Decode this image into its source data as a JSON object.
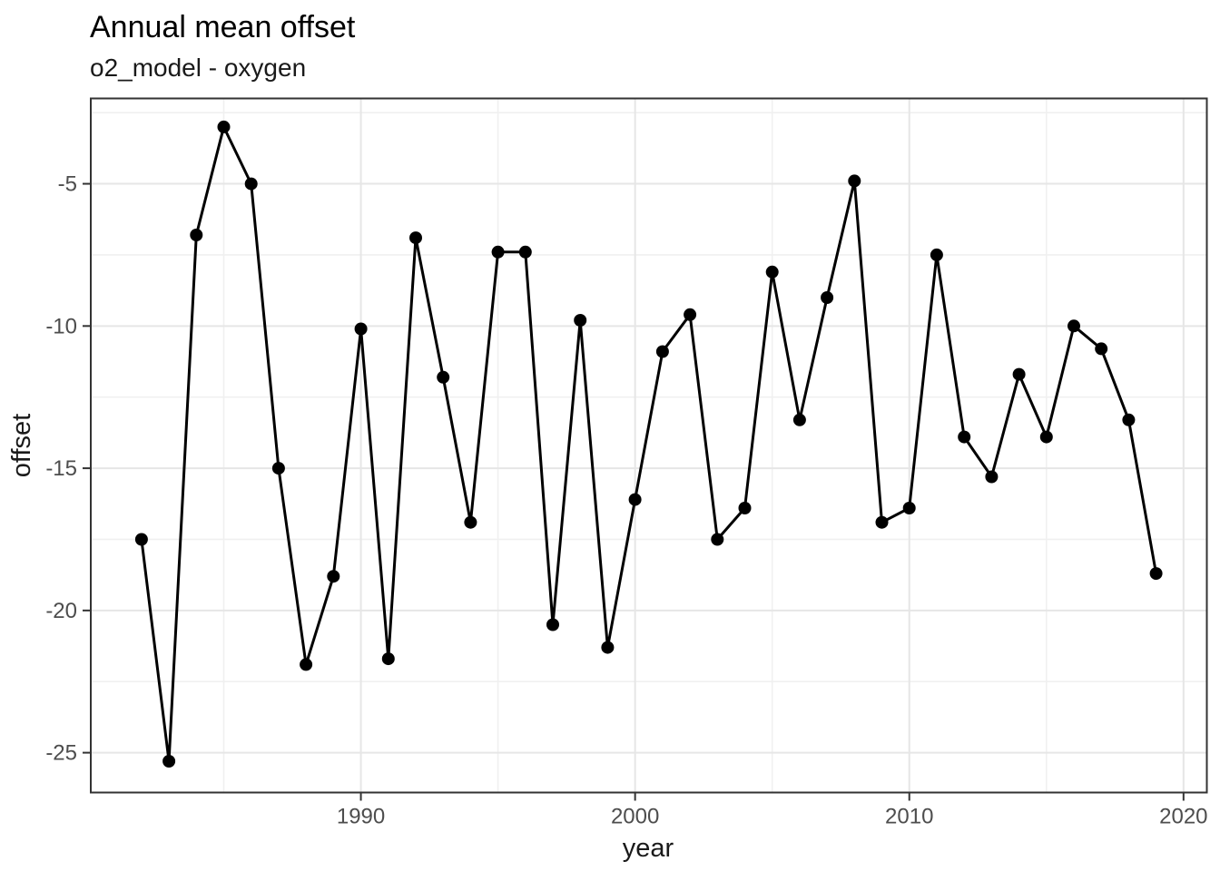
{
  "chart_data": {
    "type": "line",
    "title": "Annual mean offset",
    "subtitle": "o2_model - oxygen",
    "xlabel": "year",
    "ylabel": "offset",
    "x": [
      1982,
      1983,
      1984,
      1985,
      1986,
      1987,
      1988,
      1989,
      1990,
      1991,
      1992,
      1993,
      1994,
      1995,
      1996,
      1997,
      1998,
      1999,
      2000,
      2001,
      2002,
      2003,
      2004,
      2005,
      2006,
      2007,
      2008,
      2009,
      2010,
      2011,
      2012,
      2013,
      2014,
      2015,
      2016,
      2017,
      2018,
      2019
    ],
    "series": [
      {
        "name": "offset",
        "values": [
          -17.5,
          -25.3,
          -6.8,
          -3.0,
          -5.0,
          -15.0,
          -21.9,
          -18.8,
          -10.1,
          -21.7,
          -6.9,
          -11.8,
          -16.9,
          -7.4,
          -7.4,
          -20.5,
          -9.8,
          -21.3,
          -16.1,
          -10.9,
          -9.6,
          -17.5,
          -16.4,
          -8.1,
          -13.3,
          -9.0,
          -4.9,
          -16.9,
          -16.4,
          -7.5,
          -13.9,
          -15.3,
          -11.7,
          -13.9,
          -10.0,
          -10.8,
          -13.3,
          -18.7
        ]
      }
    ],
    "xlim": [
      1980.15,
      2020.85
    ],
    "ylim": [
      -26.4,
      -2.0
    ],
    "x_ticks": {
      "values": [
        1990,
        2000,
        2010,
        2020
      ],
      "labels": [
        "1990",
        "2000",
        "2010",
        "2020"
      ]
    },
    "y_ticks": {
      "values": [
        -5,
        -10,
        -15,
        -20,
        -25
      ],
      "labels": [
        "-5",
        "-10",
        "-15",
        "-20",
        "-25"
      ]
    },
    "x_minor": [
      1985,
      1995,
      2005,
      2015
    ],
    "y_minor": [
      -2.5,
      -7.5,
      -12.5,
      -17.5,
      -22.5
    ],
    "grid": "major and minor gridlines on white panel",
    "legend": "none",
    "marker": "filled circle",
    "style": {
      "line_color": "#000000",
      "point_color": "#000000",
      "grid_major_color": "#e6e6e6",
      "grid_minor_color": "#f0f0f0",
      "panel_border_color": "#333333",
      "tick_label_color": "#4d4d4d",
      "title_color": "#000000",
      "background": "#ffffff"
    }
  }
}
